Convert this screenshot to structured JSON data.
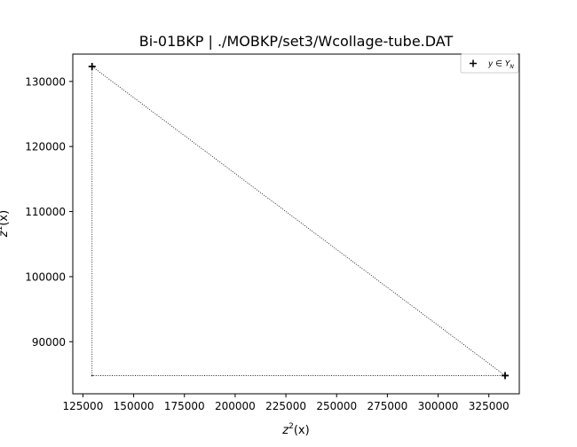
{
  "chart_data": {
    "type": "scatter",
    "title": "Bi-01BKP | ./MOBKP/set3/Wcollage-tube.DAT",
    "xlabel_base": "z",
    "xlabel_sup": "2",
    "xlabel_tail": "(x)",
    "ylabel_base": "z",
    "ylabel_sup": "1",
    "ylabel_tail": "(x)",
    "xlim": [
      120000,
      340000
    ],
    "ylim": [
      82000,
      134200
    ],
    "xticks": [
      125000,
      150000,
      175000,
      200000,
      225000,
      250000,
      275000,
      300000,
      325000
    ],
    "xtick_labels": [
      "125000",
      "150000",
      "175000",
      "200000",
      "225000",
      "250000",
      "275000",
      "300000",
      "325000"
    ],
    "yticks": [
      90000,
      100000,
      110000,
      120000,
      130000
    ],
    "ytick_labels": [
      "90000",
      "100000",
      "110000",
      "120000",
      "130000"
    ],
    "series": [
      {
        "name": "y ∈ Y_N",
        "marker": "+",
        "color": "#000000",
        "points": [
          {
            "x": 129500,
            "y": 132300
          },
          {
            "x": 333000,
            "y": 84800
          }
        ]
      }
    ],
    "outline": [
      {
        "x": 129500,
        "y": 132300
      },
      {
        "x": 333000,
        "y": 84800
      },
      {
        "x": 129500,
        "y": 84800
      },
      {
        "x": 129500,
        "y": 132300
      }
    ],
    "legend": {
      "placement": "top-right",
      "base": "y ∈ Y",
      "sub": "N"
    },
    "grid": false
  }
}
